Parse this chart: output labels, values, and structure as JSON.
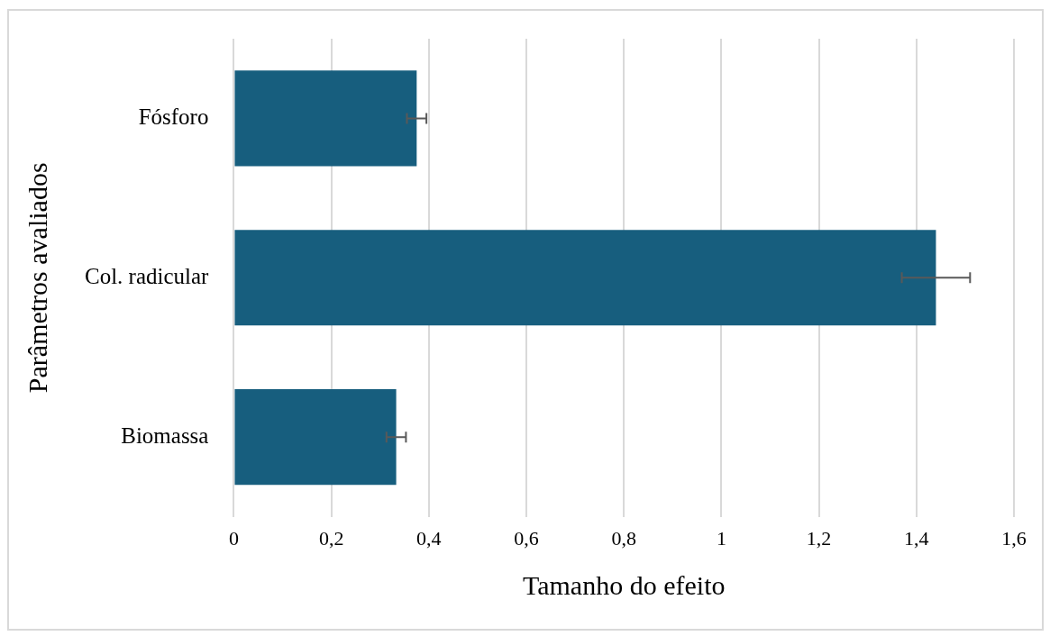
{
  "chart_data": {
    "type": "bar",
    "orientation": "horizontal",
    "xlabel": "Tamanho do efeito",
    "ylabel": "Parâmetros avaliados",
    "categories": [
      "Fósforo",
      "Col. radicular",
      "Biomassa"
    ],
    "values": [
      0.375,
      1.44,
      0.333
    ],
    "errors": [
      0.02,
      0.07,
      0.02
    ],
    "color": "#175e7e",
    "xlim": [
      0,
      1.6
    ],
    "xticks": [
      0,
      {
        "value": 0.2,
        "label": "0,2"
      },
      {
        "value": 0.4,
        "label": "0,4"
      },
      {
        "value": 0.6,
        "label": "0,6"
      },
      {
        "value": 0.8,
        "label": "0,8"
      },
      1,
      {
        "value": 1.2,
        "label": "1,2"
      },
      {
        "value": 1.4,
        "label": "1,4"
      },
      {
        "value": 1.6,
        "label": "1,6"
      }
    ],
    "grid": "x",
    "legend": false
  }
}
